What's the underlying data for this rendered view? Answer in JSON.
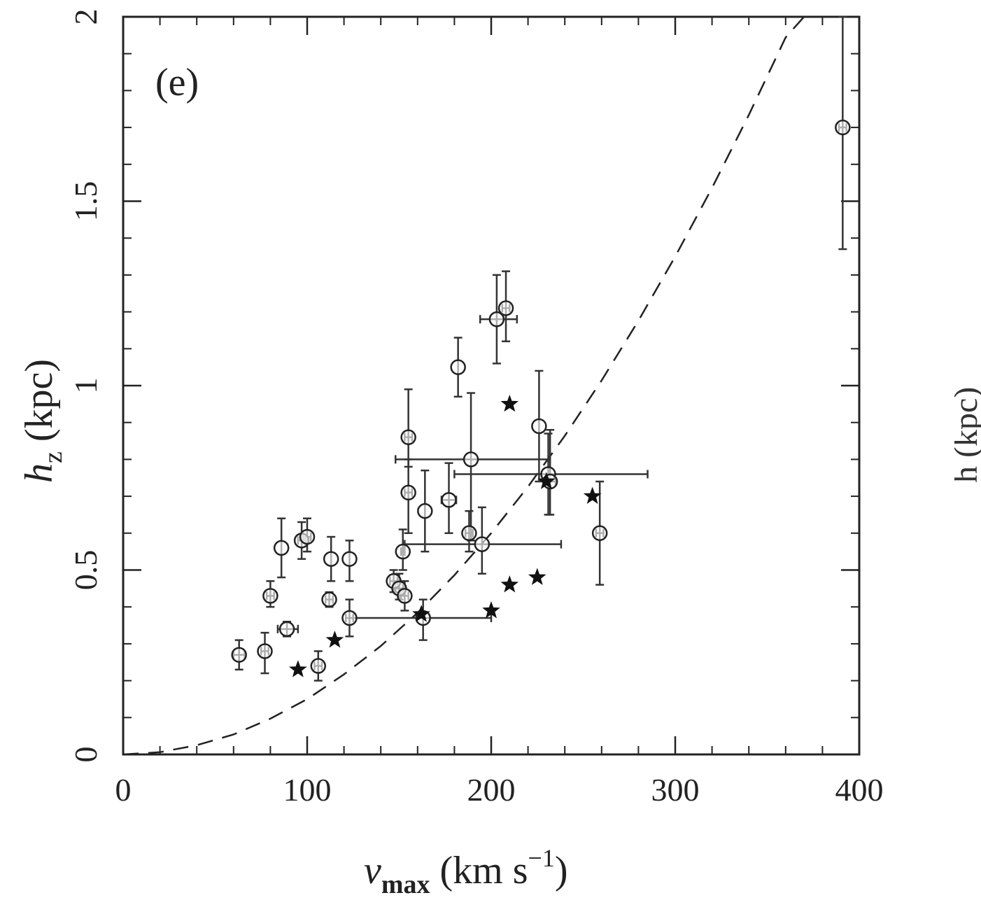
{
  "chart_data": {
    "type": "scatter",
    "panel_label": "(e)",
    "xlabel": "v_max (km s^-1)",
    "xlabel_parts": {
      "symbol": "v",
      "subscript": "max",
      "units_open": "(km s",
      "units_sup": "−1",
      "units_close": ")"
    },
    "ylabel": "h_z (kpc)",
    "ylabel_parts": {
      "symbol": "h",
      "subscript": "z",
      "units": "(kpc)"
    },
    "xlim": [
      0,
      400
    ],
    "ylim": [
      0,
      2
    ],
    "xticks": [
      {
        "value": 0,
        "label": "0"
      },
      {
        "value": 100,
        "label": "100"
      },
      {
        "value": 200,
        "label": "200"
      },
      {
        "value": 300,
        "label": "300"
      },
      {
        "value": 400,
        "label": "400"
      }
    ],
    "yticks": [
      {
        "value": 0,
        "label": "0"
      },
      {
        "value": 0.5,
        "label": "0.5"
      },
      {
        "value": 1,
        "label": "1"
      },
      {
        "value": 1.5,
        "label": "1.5"
      },
      {
        "value": 2,
        "label": "2"
      }
    ],
    "x_minor_step": 20,
    "y_minor_step": 0.1,
    "series": [
      {
        "name": "circles",
        "marker": "circle",
        "points": [
          {
            "x": 63,
            "y": 0.27,
            "ylo": 0.23,
            "yhi": 0.31,
            "xlo": 60,
            "xhi": 66
          },
          {
            "x": 77,
            "y": 0.28,
            "ylo": 0.22,
            "yhi": 0.33,
            "xlo": 75,
            "xhi": 79
          },
          {
            "x": 80,
            "y": 0.43,
            "ylo": 0.4,
            "yhi": 0.47,
            "xlo": 78,
            "xhi": 82
          },
          {
            "x": 86,
            "y": 0.56,
            "ylo": 0.48,
            "yhi": 0.64,
            "xlo": 86,
            "xhi": 86
          },
          {
            "x": 89,
            "y": 0.34,
            "ylo": 0.32,
            "yhi": 0.36,
            "xlo": 84,
            "xhi": 95
          },
          {
            "x": 97,
            "y": 0.58,
            "ylo": 0.53,
            "yhi": 0.63,
            "xlo": 95,
            "xhi": 99
          },
          {
            "x": 100,
            "y": 0.59,
            "ylo": 0.55,
            "yhi": 0.64,
            "xlo": 98,
            "xhi": 102
          },
          {
            "x": 106,
            "y": 0.24,
            "ylo": 0.2,
            "yhi": 0.28,
            "xlo": 104,
            "xhi": 108
          },
          {
            "x": 112,
            "y": 0.42,
            "ylo": 0.4,
            "yhi": 0.44,
            "xlo": 110,
            "xhi": 114
          },
          {
            "x": 113,
            "y": 0.53,
            "ylo": 0.47,
            "yhi": 0.59,
            "xlo": 113,
            "xhi": 113
          },
          {
            "x": 123,
            "y": 0.37,
            "ylo": 0.32,
            "yhi": 0.42,
            "xlo": 121,
            "xhi": 125
          },
          {
            "x": 123,
            "y": 0.53,
            "ylo": 0.47,
            "yhi": 0.58,
            "xlo": 123,
            "xhi": 123
          },
          {
            "x": 147,
            "y": 0.47,
            "ylo": 0.44,
            "yhi": 0.5,
            "xlo": 145,
            "xhi": 149
          },
          {
            "x": 150,
            "y": 0.45,
            "ylo": 0.42,
            "yhi": 0.49,
            "xlo": 148,
            "xhi": 152
          },
          {
            "x": 152,
            "y": 0.55,
            "ylo": 0.5,
            "yhi": 0.61,
            "xlo": 151,
            "xhi": 153
          },
          {
            "x": 153,
            "y": 0.43,
            "ylo": 0.39,
            "yhi": 0.47,
            "xlo": 151,
            "xhi": 155
          },
          {
            "x": 155,
            "y": 0.86,
            "ylo": 0.78,
            "yhi": 0.99,
            "xlo": 153,
            "xhi": 157
          },
          {
            "x": 155,
            "y": 0.71,
            "ylo": 0.6,
            "yhi": 0.8,
            "xlo": 153,
            "xhi": 157
          },
          {
            "x": 163,
            "y": 0.37,
            "ylo": 0.31,
            "yhi": 0.42,
            "xlo": 125,
            "xhi": 200
          },
          {
            "x": 164,
            "y": 0.66,
            "ylo": 0.55,
            "yhi": 0.77,
            "xlo": 164,
            "xhi": 164
          },
          {
            "x": 177,
            "y": 0.69,
            "ylo": 0.6,
            "yhi": 0.79,
            "xlo": 173,
            "xhi": 181
          },
          {
            "x": 182,
            "y": 1.05,
            "ylo": 0.97,
            "yhi": 1.13,
            "xlo": 182,
            "xhi": 182
          },
          {
            "x": 188,
            "y": 0.6,
            "ylo": 0.55,
            "yhi": 0.66,
            "xlo": 186,
            "xhi": 190
          },
          {
            "x": 189,
            "y": 0.8,
            "ylo": 0.58,
            "yhi": 0.98,
            "xlo": 148,
            "xhi": 232
          },
          {
            "x": 195,
            "y": 0.57,
            "ylo": 0.49,
            "yhi": 0.67,
            "xlo": 153,
            "xhi": 238
          },
          {
            "x": 203,
            "y": 1.18,
            "ylo": 1.06,
            "yhi": 1.3,
            "xlo": 194,
            "xhi": 214
          },
          {
            "x": 208,
            "y": 1.21,
            "ylo": 1.12,
            "yhi": 1.31,
            "xlo": 206,
            "xhi": 210
          },
          {
            "x": 226,
            "y": 0.89,
            "ylo": 0.74,
            "yhi": 1.04,
            "xlo": 226,
            "xhi": 226
          },
          {
            "x": 231,
            "y": 0.76,
            "ylo": 0.65,
            "yhi": 0.87,
            "xlo": 180,
            "xhi": 285
          },
          {
            "x": 232,
            "y": 0.74,
            "ylo": 0.65,
            "yhi": 0.88,
            "xlo": 229,
            "xhi": 235
          },
          {
            "x": 259,
            "y": 0.6,
            "ylo": 0.46,
            "yhi": 0.74,
            "xlo": 257,
            "xhi": 261
          },
          {
            "x": 391,
            "y": 1.7,
            "ylo": 1.37,
            "yhi": 2.0,
            "xlo": 389,
            "xhi": 393
          }
        ]
      },
      {
        "name": "stars",
        "marker": "star",
        "points": [
          {
            "x": 95,
            "y": 0.23
          },
          {
            "x": 115,
            "y": 0.31
          },
          {
            "x": 162,
            "y": 0.38
          },
          {
            "x": 200,
            "y": 0.39
          },
          {
            "x": 210,
            "y": 0.46
          },
          {
            "x": 210,
            "y": 0.95
          },
          {
            "x": 225,
            "y": 0.48
          },
          {
            "x": 230,
            "y": 0.74
          },
          {
            "x": 255,
            "y": 0.7
          }
        ]
      }
    ],
    "model_curve": {
      "name": "dashed model",
      "style": "dashed",
      "x": [
        0,
        20,
        40,
        60,
        80,
        100,
        120,
        140,
        160,
        180,
        200,
        220,
        240,
        260,
        280,
        300,
        320,
        340,
        360,
        370
      ],
      "y": [
        0.0,
        0.006,
        0.025,
        0.054,
        0.097,
        0.15,
        0.217,
        0.294,
        0.384,
        0.486,
        0.6,
        0.726,
        0.864,
        1.014,
        1.176,
        1.35,
        1.536,
        1.734,
        1.944,
        2.0
      ]
    },
    "edge_partial_text": "h (kpc)"
  }
}
